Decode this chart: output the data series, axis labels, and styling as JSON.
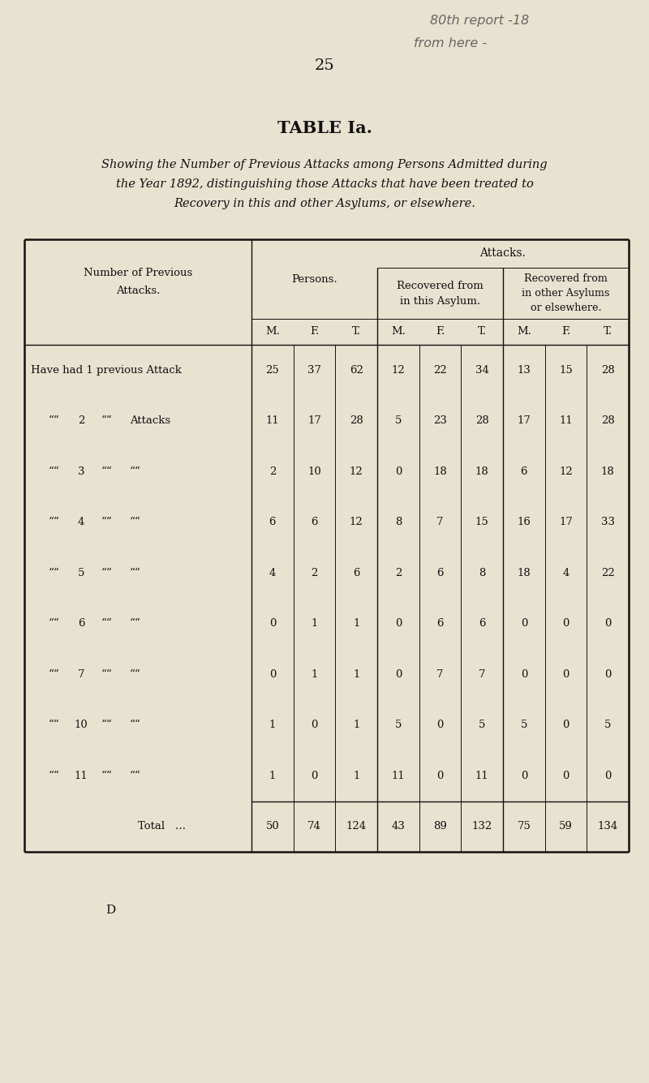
{
  "bg_color": "#e8e2d0",
  "page_number": "25",
  "handwritten_line1": "80th report -18",
  "handwritten_line2": "from here -",
  "table_title": "TABLE Ia.",
  "subtitle_line1": "Showing the Number of Previous Attacks among Persons Admitted during",
  "subtitle_line2": "the Year 1892, distinguishing those Attacks that have been treated to",
  "subtitle_line3": "Recovery in this and other Asylums, or elsewhere.",
  "row_labels_raw": [
    "Have had 1 previous Attack",
    "2",
    "3",
    "4",
    "5",
    "6",
    "7",
    "10",
    "11",
    "Total"
  ],
  "data": [
    [
      25,
      37,
      62,
      12,
      22,
      34,
      13,
      15,
      28
    ],
    [
      11,
      17,
      28,
      5,
      23,
      28,
      17,
      11,
      28
    ],
    [
      2,
      10,
      12,
      0,
      18,
      18,
      6,
      12,
      18
    ],
    [
      6,
      6,
      12,
      8,
      7,
      15,
      16,
      17,
      33
    ],
    [
      4,
      2,
      6,
      2,
      6,
      8,
      18,
      4,
      22
    ],
    [
      0,
      1,
      1,
      0,
      6,
      6,
      0,
      0,
      0
    ],
    [
      0,
      1,
      1,
      0,
      7,
      7,
      0,
      0,
      0
    ],
    [
      1,
      0,
      1,
      5,
      0,
      5,
      5,
      0,
      5
    ],
    [
      1,
      0,
      1,
      11,
      0,
      11,
      0,
      0,
      0
    ],
    [
      50,
      74,
      124,
      43,
      89,
      132,
      75,
      59,
      134
    ]
  ],
  "footer_letter": "D",
  "text_color": "#111111",
  "handwritten_color": "#666666"
}
